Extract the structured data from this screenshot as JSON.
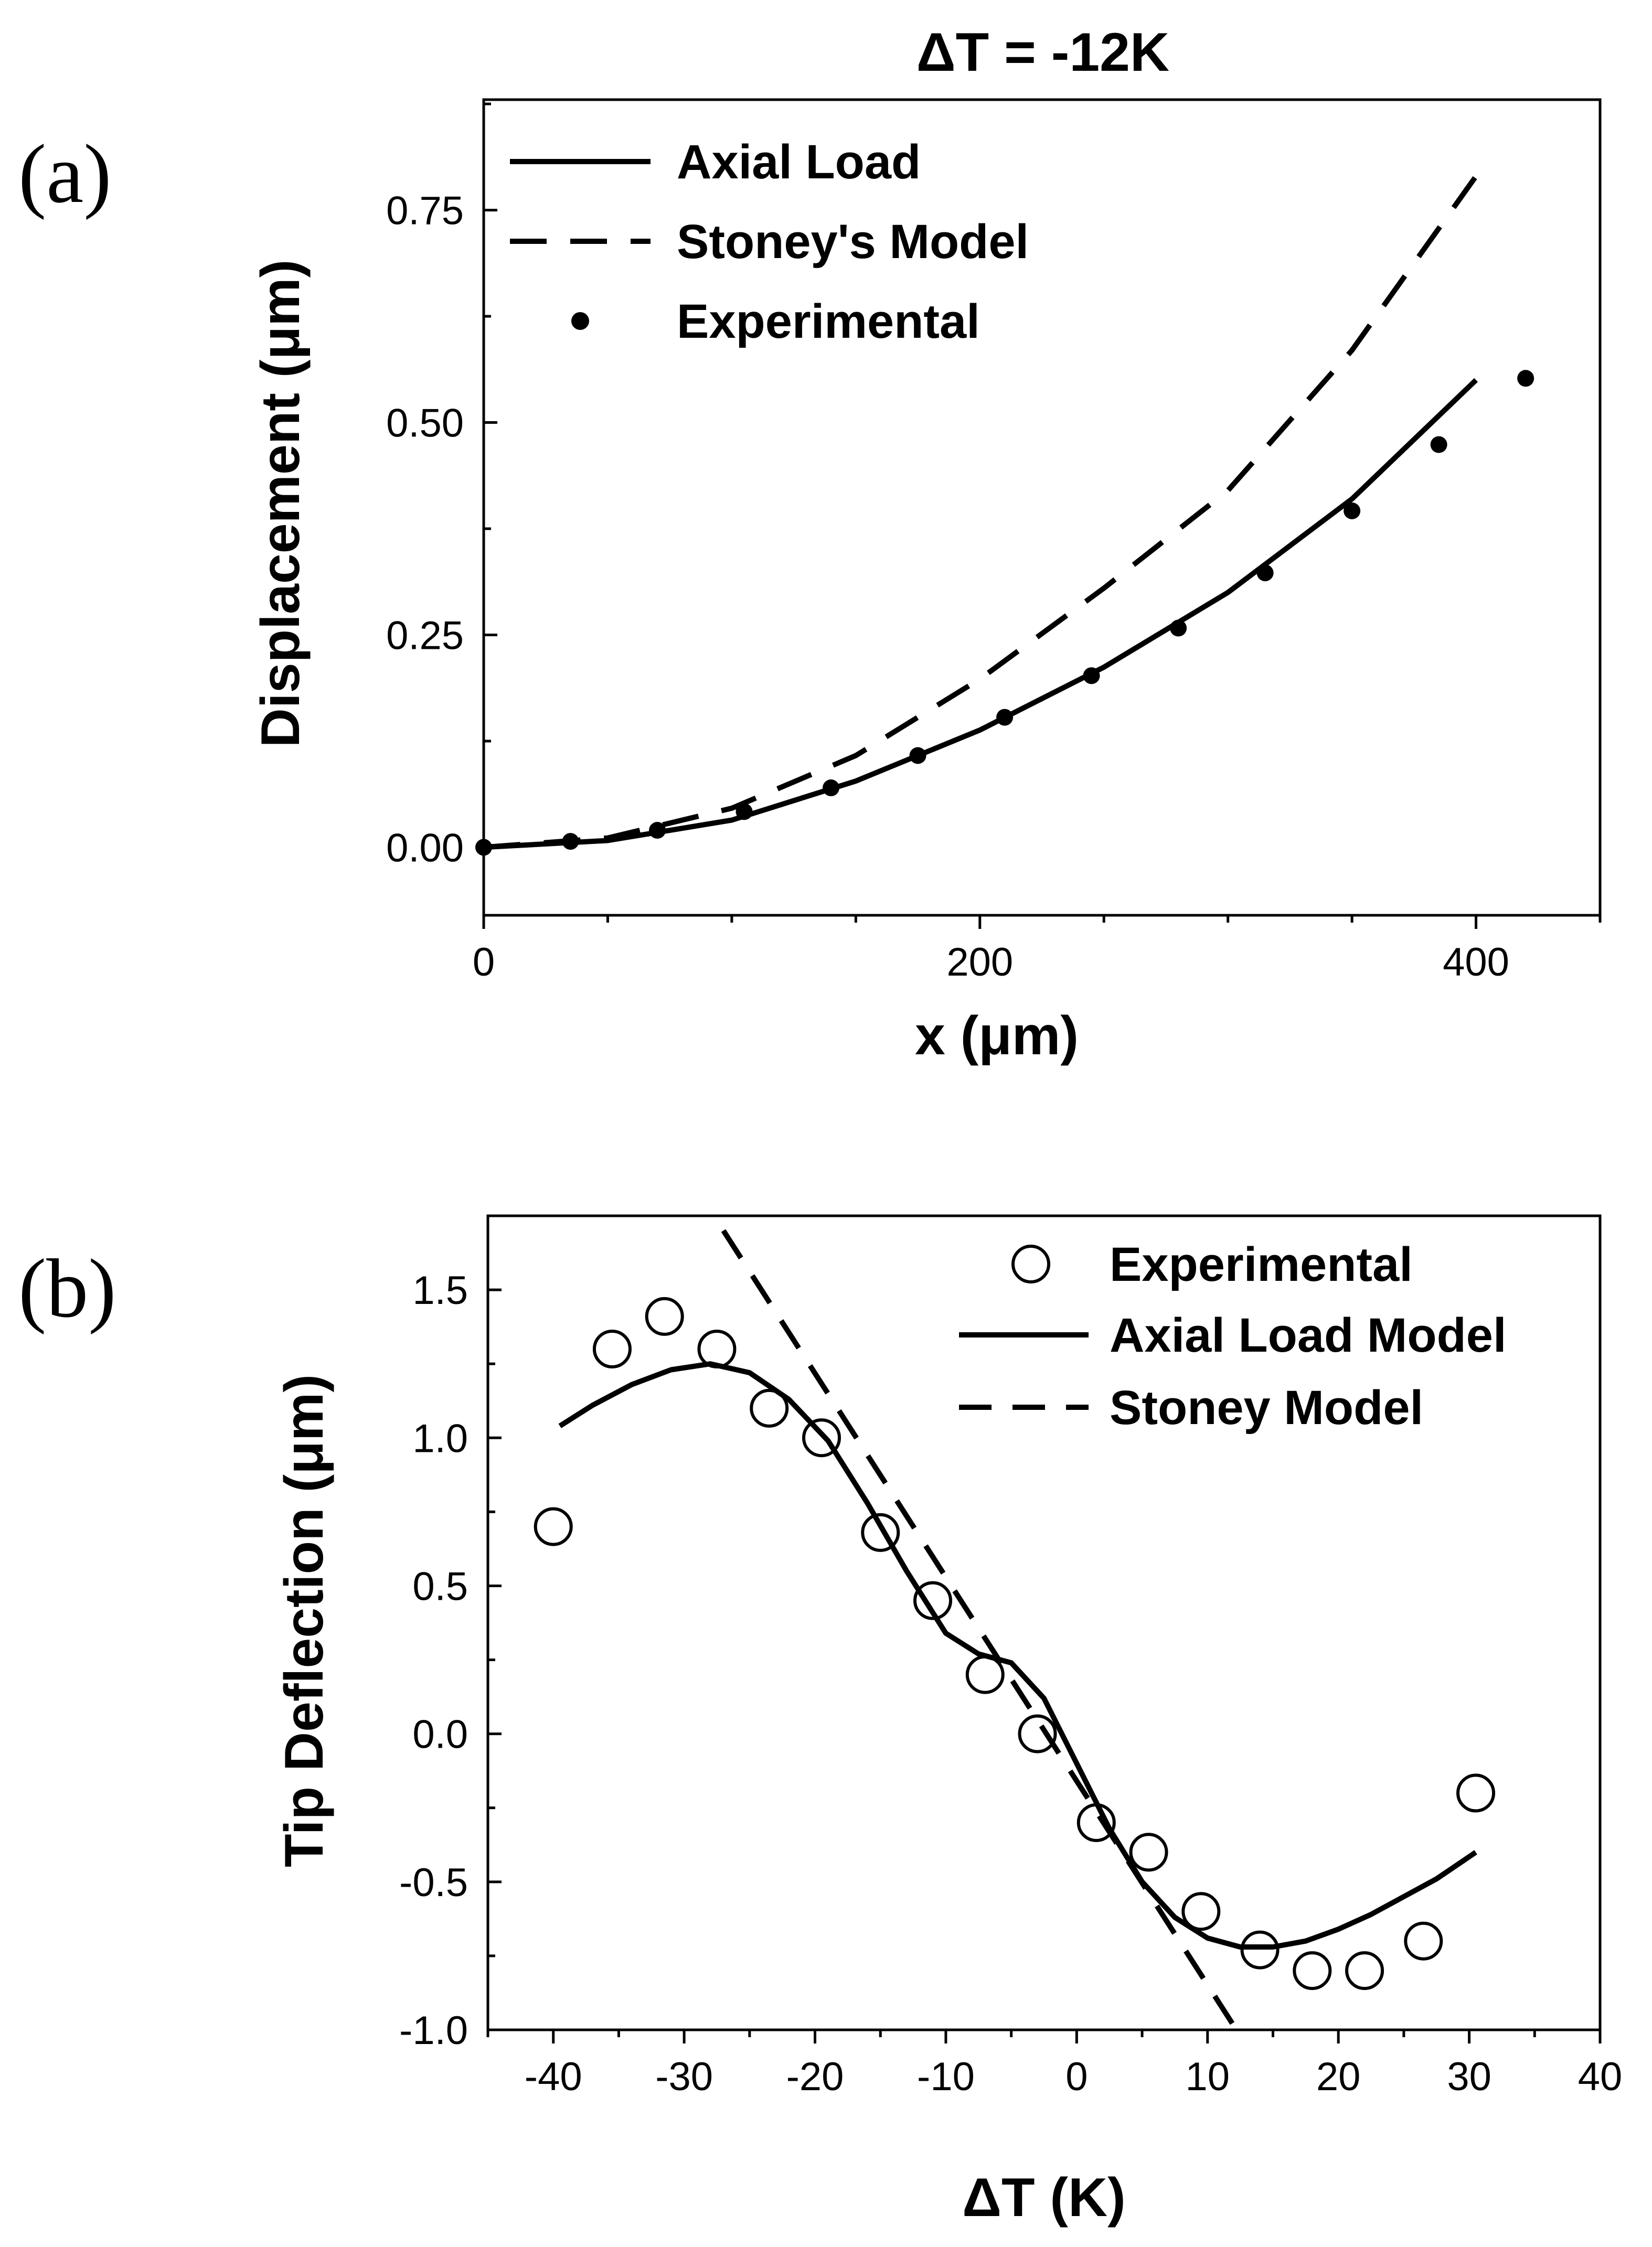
{
  "chart_data": [
    {
      "panel_label": "(a)",
      "type": "line",
      "title": "ΔT = -12K",
      "xlabel": "x (μm)",
      "ylabel": "Displacement (μm)",
      "xlim": [
        0,
        450
      ],
      "ylim": [
        -0.08,
        0.88
      ],
      "xticks": [
        0,
        200,
        400
      ],
      "xtick_labels": [
        "0",
        "200",
        "400"
      ],
      "yticks": [
        0.0,
        0.25,
        0.5,
        0.75
      ],
      "ytick_labels": [
        "0.00",
        "0.25",
        "0.50",
        "0.75"
      ],
      "legend": [
        "Axial Load",
        "Stoney's Model",
        "Experimental"
      ],
      "series": [
        {
          "name": "Axial Load",
          "style": "solid",
          "x": [
            0,
            50,
            100,
            150,
            200,
            250,
            300,
            350,
            400
          ],
          "y": [
            0.0,
            0.008,
            0.032,
            0.078,
            0.138,
            0.212,
            0.3,
            0.41,
            0.55
          ]
        },
        {
          "name": "Stoney's Model",
          "style": "dashed",
          "x": [
            0,
            50,
            100,
            150,
            200,
            250,
            300,
            350,
            400
          ],
          "y": [
            0.0,
            0.011,
            0.046,
            0.108,
            0.198,
            0.305,
            0.42,
            0.585,
            0.79
          ]
        },
        {
          "name": "Experimental",
          "style": "markers",
          "x": [
            0,
            35,
            70,
            105,
            140,
            175,
            210,
            245,
            280,
            315,
            350,
            385,
            420
          ],
          "y": [
            0.0,
            0.007,
            0.02,
            0.042,
            0.07,
            0.108,
            0.153,
            0.202,
            0.258,
            0.323,
            0.396,
            0.474,
            0.552
          ]
        }
      ]
    },
    {
      "panel_label": "(b)",
      "type": "line",
      "xlabel": "ΔT (K)",
      "ylabel": "Tip Deflection (μm)",
      "xlim": [
        -45,
        40
      ],
      "ylim": [
        -1.0,
        1.75
      ],
      "xticks": [
        -40,
        -30,
        -20,
        -10,
        0,
        10,
        20,
        30,
        40
      ],
      "xtick_labels": [
        "-40",
        "-30",
        "-20",
        "-10",
        "0",
        "10",
        "20",
        "30",
        "40"
      ],
      "yticks": [
        -1.0,
        -0.5,
        0.0,
        0.5,
        1.0,
        1.5
      ],
      "ytick_labels": [
        "-1.0",
        "-0.5",
        "0.0",
        "0.5",
        "1.0",
        "1.5"
      ],
      "legend": [
        "Experimental",
        "Axial Load Model",
        "Stoney Model"
      ],
      "series": [
        {
          "name": "Experimental",
          "style": "open-circles",
          "x": [
            -40,
            -35.5,
            -31.5,
            -27.5,
            -23.5,
            -19.5,
            -15,
            -11,
            -7,
            -3,
            1.5,
            5.5,
            9.5,
            14,
            18,
            22,
            26.5,
            30.5
          ],
          "y": [
            0.7,
            1.3,
            1.41,
            1.3,
            1.1,
            1.0,
            0.68,
            0.45,
            0.2,
            0.0,
            -0.3,
            -0.4,
            -0.6,
            -0.73,
            -0.8,
            -0.8,
            -0.7,
            -0.2
          ]
        },
        {
          "name": "Axial Load Model",
          "style": "solid",
          "x": [
            -39.5,
            -37,
            -34,
            -31,
            -28,
            -25,
            -22,
            -19,
            -16,
            -13,
            -10,
            -7.5,
            -5,
            -2.5,
            0,
            2.5,
            5,
            7.5,
            10,
            12.5,
            15,
            17.5,
            20,
            22.5,
            25,
            27.5,
            30.5
          ],
          "y": [
            1.04,
            1.11,
            1.18,
            1.23,
            1.25,
            1.22,
            1.13,
            0.99,
            0.78,
            0.55,
            0.34,
            0.27,
            0.24,
            0.12,
            -0.1,
            -0.32,
            -0.5,
            -0.62,
            -0.69,
            -0.72,
            -0.72,
            -0.7,
            -0.66,
            -0.61,
            -0.55,
            -0.49,
            -0.4
          ]
        },
        {
          "name": "Stoney Model",
          "style": "dashed",
          "x": [
            -27,
            12.5
          ],
          "y": [
            1.7,
            -1.02
          ]
        }
      ]
    }
  ]
}
